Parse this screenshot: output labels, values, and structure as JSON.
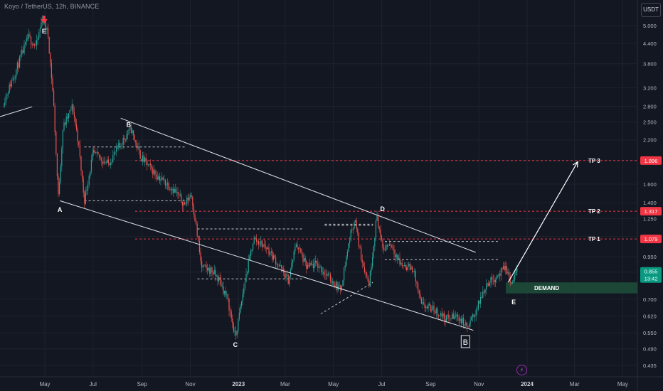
{
  "header": {
    "symbol_title": "Koyo / TetherUS, 12h, BINANCE",
    "currency": "USDT"
  },
  "icons": {
    "flash": "lightning-icon"
  },
  "colors": {
    "background": "#131722",
    "up": "#26a69a",
    "down": "#ef5350",
    "grid": "#1e222d",
    "text": "#d1d4dc",
    "target": "#f23645",
    "demand": "#1e4d3a",
    "current_price": "#089981"
  },
  "chart_data": {
    "type": "candlestick",
    "title": "Koyo / TetherUS, 12h, BINANCE",
    "y_scale": "log",
    "ylim": [
      0.42,
      6.1
    ],
    "y_ticks": [
      "5.000",
      "4.400",
      "3.800",
      "3.200",
      "2.800",
      "2.500",
      "2.200",
      "1.900",
      "1.600",
      "1.400",
      "1.250",
      "1.100",
      "0.950",
      "0.850",
      "0.700",
      "0.620",
      "0.550",
      "0.490",
      "0.435"
    ],
    "x_ticks": [
      "May",
      "Jul",
      "Sep",
      "Nov",
      "2023",
      "Mar",
      "May",
      "Jul",
      "Sep",
      "Nov",
      "2024",
      "Mar",
      "May"
    ],
    "price_path": [
      [
        "2022-03-10",
        2.9
      ],
      [
        "2022-03-25",
        3.6
      ],
      [
        "2022-04-10",
        4.6
      ],
      [
        "2022-04-20",
        4.3
      ],
      [
        "2022-04-28",
        5.3
      ],
      [
        "2022-05-05",
        4.7
      ],
      [
        "2022-05-12",
        2.9
      ],
      [
        "2022-05-18",
        1.45
      ],
      [
        "2022-05-24",
        2.4
      ],
      [
        "2022-06-05",
        2.8
      ],
      [
        "2022-06-12",
        2.2
      ],
      [
        "2022-06-20",
        1.42
      ],
      [
        "2022-07-01",
        2.0
      ],
      [
        "2022-07-20",
        1.85
      ],
      [
        "2022-08-08",
        2.2
      ],
      [
        "2022-08-18",
        2.38
      ],
      [
        "2022-08-30",
        1.95
      ],
      [
        "2022-09-20",
        1.7
      ],
      [
        "2022-10-10",
        1.55
      ],
      [
        "2022-10-25",
        1.38
      ],
      [
        "2022-11-02",
        1.5
      ],
      [
        "2022-11-08",
        1.2
      ],
      [
        "2022-11-15",
        0.88
      ],
      [
        "2022-11-28",
        0.86
      ],
      [
        "2022-12-08",
        0.8
      ],
      [
        "2022-12-18",
        0.7
      ],
      [
        "2022-12-28",
        0.53
      ],
      [
        "2023-01-10",
        0.82
      ],
      [
        "2023-01-20",
        1.08
      ],
      [
        "2023-02-05",
        1.02
      ],
      [
        "2023-02-20",
        0.9
      ],
      [
        "2023-03-05",
        0.8
      ],
      [
        "2023-03-15",
        1.05
      ],
      [
        "2023-03-28",
        0.88
      ],
      [
        "2023-04-10",
        0.9
      ],
      [
        "2023-04-25",
        0.82
      ],
      [
        "2023-05-10",
        0.75
      ],
      [
        "2023-05-22",
        1.1
      ],
      [
        "2023-05-28",
        1.25
      ],
      [
        "2023-06-05",
        0.95
      ],
      [
        "2023-06-15",
        0.78
      ],
      [
        "2023-06-25",
        1.28
      ],
      [
        "2023-07-02",
        1.0
      ],
      [
        "2023-07-12",
        1.05
      ],
      [
        "2023-07-25",
        0.9
      ],
      [
        "2023-08-10",
        0.87
      ],
      [
        "2023-08-20",
        0.67
      ],
      [
        "2023-09-05",
        0.65
      ],
      [
        "2023-09-20",
        0.61
      ],
      [
        "2023-10-05",
        0.62
      ],
      [
        "2023-10-18",
        0.57
      ],
      [
        "2023-10-30",
        0.66
      ],
      [
        "2023-11-10",
        0.78
      ],
      [
        "2023-11-25",
        0.83
      ],
      [
        "2023-12-05",
        0.88
      ],
      [
        "2023-12-12",
        0.78
      ],
      [
        "2023-12-20",
        0.86
      ]
    ],
    "levels": [
      {
        "label": "TP 3",
        "value": 1.896,
        "price_label": "1.896"
      },
      {
        "label": "TP 2",
        "value": 1.317,
        "price_label": "1.317"
      },
      {
        "label": "TP 1",
        "value": 1.079,
        "price_label": "1.079"
      }
    ],
    "current_price": {
      "value": 0.855,
      "price_label": "0.855",
      "countdown": "13:42"
    },
    "demand_zone": {
      "label": "DEMAND",
      "from_date": "2023-12-05",
      "low": 0.73,
      "high": 0.79
    },
    "wave_labels": [
      {
        "text": "E",
        "date": "2022-04-30",
        "price": 4.8
      },
      {
        "text": "A",
        "date": "2022-05-20",
        "price": 1.33
      },
      {
        "text": "B",
        "date": "2022-08-15",
        "price": 2.45
      },
      {
        "text": "C",
        "date": "2022-12-28",
        "price": 0.505
      },
      {
        "text": "D",
        "date": "2023-07-02",
        "price": 1.34
      },
      {
        "text": "E",
        "date": "2023-12-15",
        "price": 0.685
      }
    ],
    "boxed_label": {
      "text": "B",
      "date": "2023-10-15",
      "price": 0.515
    },
    "channel": {
      "upper": [
        [
          "2022-08-05",
          2.57
        ],
        [
          "2023-10-28",
          0.98
        ]
      ],
      "lower": [
        [
          "2022-05-20",
          1.42
        ],
        [
          "2023-10-25",
          0.56
        ]
      ]
    },
    "projection": {
      "from": [
        "2023-12-08",
        0.79
      ],
      "to": [
        "2024-03-05",
        1.88
      ]
    },
    "trend_line": [
      [
        "2022-03-01",
        2.58
      ],
      [
        "2022-04-15",
        2.79
      ]
    ],
    "dashed_ranges": [
      {
        "from": "2022-06-20",
        "to": "2022-10-25",
        "high": 2.09,
        "low": 1.42
      },
      {
        "from": "2022-11-10",
        "to": "2023-03-25",
        "high": 1.16,
        "low": 0.81
      },
      {
        "from": "2023-04-20",
        "to": "2023-06-20",
        "high": 1.2,
        "low": 1.19
      },
      {
        "from": "2023-07-05",
        "to": "2023-11-25",
        "high": 1.06,
        "low": 0.93
      }
    ],
    "dashed_trend": [
      [
        "2023-04-15",
        0.63
      ],
      [
        "2023-06-20",
        0.79
      ]
    ]
  }
}
